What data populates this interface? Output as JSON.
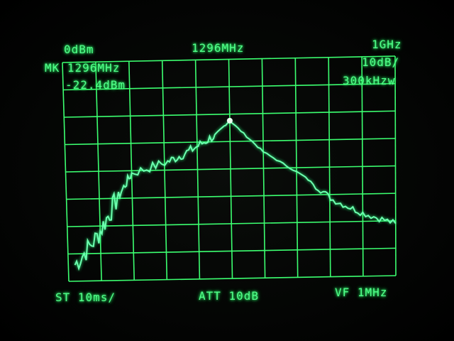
{
  "header": {
    "ref_level": "0dBm",
    "center_freq": "1296MHz",
    "span": "1GHz",
    "marker_freq": "MK 1296MHz",
    "marker_level": "-22.4dBm",
    "scale": "10dB/",
    "rbw": "300kHzw"
  },
  "footer": {
    "sweep_time": "ST 10ms/",
    "attenuation": "ATT 10dB",
    "video_filter": "VF 1MHz"
  },
  "colors": {
    "phosphor": "#52ff8a",
    "grid": "#3cff70",
    "background": "#000000"
  },
  "chart_data": {
    "type": "line",
    "title": "",
    "xlabel": "",
    "ylabel": "",
    "xlim": [
      796,
      1796
    ],
    "ylim": [
      -80,
      0
    ],
    "x_unit": "MHz",
    "y_unit": "dBm",
    "grid": true,
    "grid_divisions": {
      "x": 10,
      "y": 8
    },
    "marker": {
      "x": 1296,
      "y": -22.4
    },
    "x": [
      816,
      886,
      946,
      996,
      1106,
      1176,
      1246,
      1296,
      1396,
      1516,
      1606,
      1696,
      1796
    ],
    "y": [
      -74,
      -64,
      -51,
      -41,
      -37,
      -33,
      -28,
      -22.4,
      -34,
      -43,
      -52,
      -57,
      -61
    ]
  }
}
